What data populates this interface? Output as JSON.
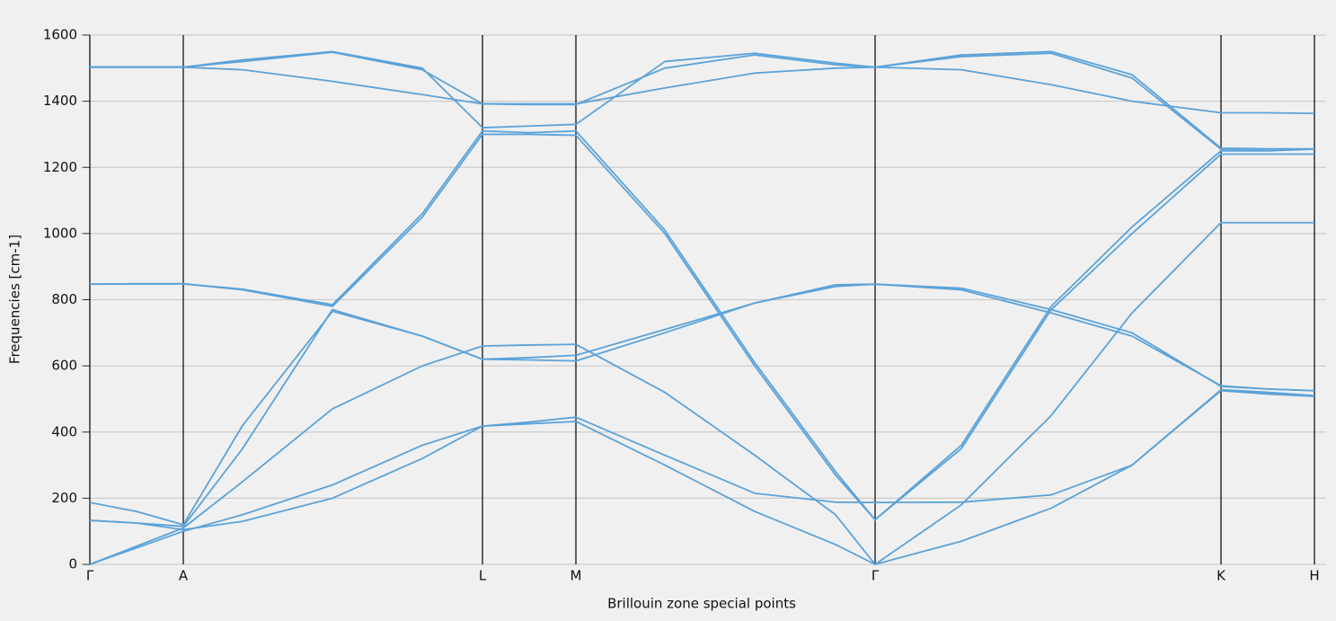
{
  "chart_data": {
    "type": "line",
    "xlabel": "Brillouin zone special points",
    "ylabel": "Frequencies [cm-1]",
    "x": [
      0,
      52,
      104,
      170,
      270,
      370,
      437,
      489,
      541,
      640,
      740,
      830,
      874,
      970,
      1070,
      1160,
      1259,
      1311,
      1363
    ],
    "xlim": [
      0,
      1363
    ],
    "xticks": [
      {
        "value": 0,
        "label": "Γ"
      },
      {
        "value": 104,
        "label": "A"
      },
      {
        "value": 437,
        "label": "L"
      },
      {
        "value": 541,
        "label": "M"
      },
      {
        "value": 874,
        "label": "Γ"
      },
      {
        "value": 1259,
        "label": "K"
      },
      {
        "value": 1363,
        "label": "H"
      }
    ],
    "ylim": [
      0,
      1600
    ],
    "yticks": [
      0,
      200,
      400,
      600,
      800,
      1000,
      1200,
      1400,
      1600
    ],
    "grid": true,
    "series": [
      {
        "color": "#5ba2d8",
        "values": [
          0,
          50,
          100,
          150,
          240,
          360,
          418,
          425,
          432,
          300,
          160,
          60,
          0,
          70,
          170,
          300,
          525,
          515,
          508
        ]
      },
      {
        "color": "#5ba2d8",
        "values": [
          133,
          125,
          105,
          130,
          200,
          320,
          418,
          430,
          445,
          330,
          215,
          188,
          187,
          188,
          210,
          300,
          528,
          520,
          510
        ]
      },
      {
        "color": "#5ba2d8",
        "values": [
          0,
          55,
          110,
          250,
          470,
          600,
          660,
          663,
          665,
          520,
          330,
          150,
          0,
          180,
          450,
          760,
          1033,
          1033,
          1033
        ]
      },
      {
        "color": "#5ba2d8",
        "values": [
          133,
          125,
          115,
          350,
          770,
          690,
          620,
          618,
          615,
          700,
          790,
          845,
          847,
          830,
          760,
          690,
          540,
          530,
          525
        ]
      },
      {
        "color": "#5ba2d8",
        "values": [
          187,
          160,
          120,
          420,
          765,
          690,
          620,
          625,
          632,
          710,
          790,
          840,
          847,
          835,
          770,
          700,
          538,
          530,
          525
        ]
      },
      {
        "color": "#5ba2d8",
        "values": [
          847,
          848,
          848,
          830,
          780,
          1050,
          1300,
          1300,
          1297,
          1000,
          600,
          270,
          135,
          350,
          770,
          1000,
          1240,
          1240,
          1240
        ]
      },
      {
        "color": "#5ba2d8",
        "values": [
          847,
          848,
          848,
          832,
          785,
          1060,
          1310,
          1305,
          1310,
          1010,
          610,
          280,
          135,
          360,
          780,
          1020,
          1250,
          1250,
          1255
        ]
      },
      {
        "color": "#5ba2d8",
        "values": [
          1503,
          1503,
          1503,
          1495,
          1460,
          1420,
          1392,
          1392,
          1392,
          1440,
          1485,
          1500,
          1503,
          1495,
          1450,
          1400,
          1365,
          1365,
          1363
        ]
      },
      {
        "color": "#5ba2d8",
        "values": [
          1503,
          1503,
          1503,
          1525,
          1550,
          1500,
          1320,
          1325,
          1330,
          1520,
          1545,
          1515,
          1503,
          1540,
          1550,
          1480,
          1258,
          1256,
          1256
        ]
      },
      {
        "color": "#5ba2d8",
        "values": [
          1503,
          1503,
          1503,
          1520,
          1548,
          1495,
          1392,
          1390,
          1390,
          1500,
          1540,
          1510,
          1503,
          1535,
          1545,
          1470,
          1255,
          1255,
          1255
        ]
      }
    ]
  }
}
